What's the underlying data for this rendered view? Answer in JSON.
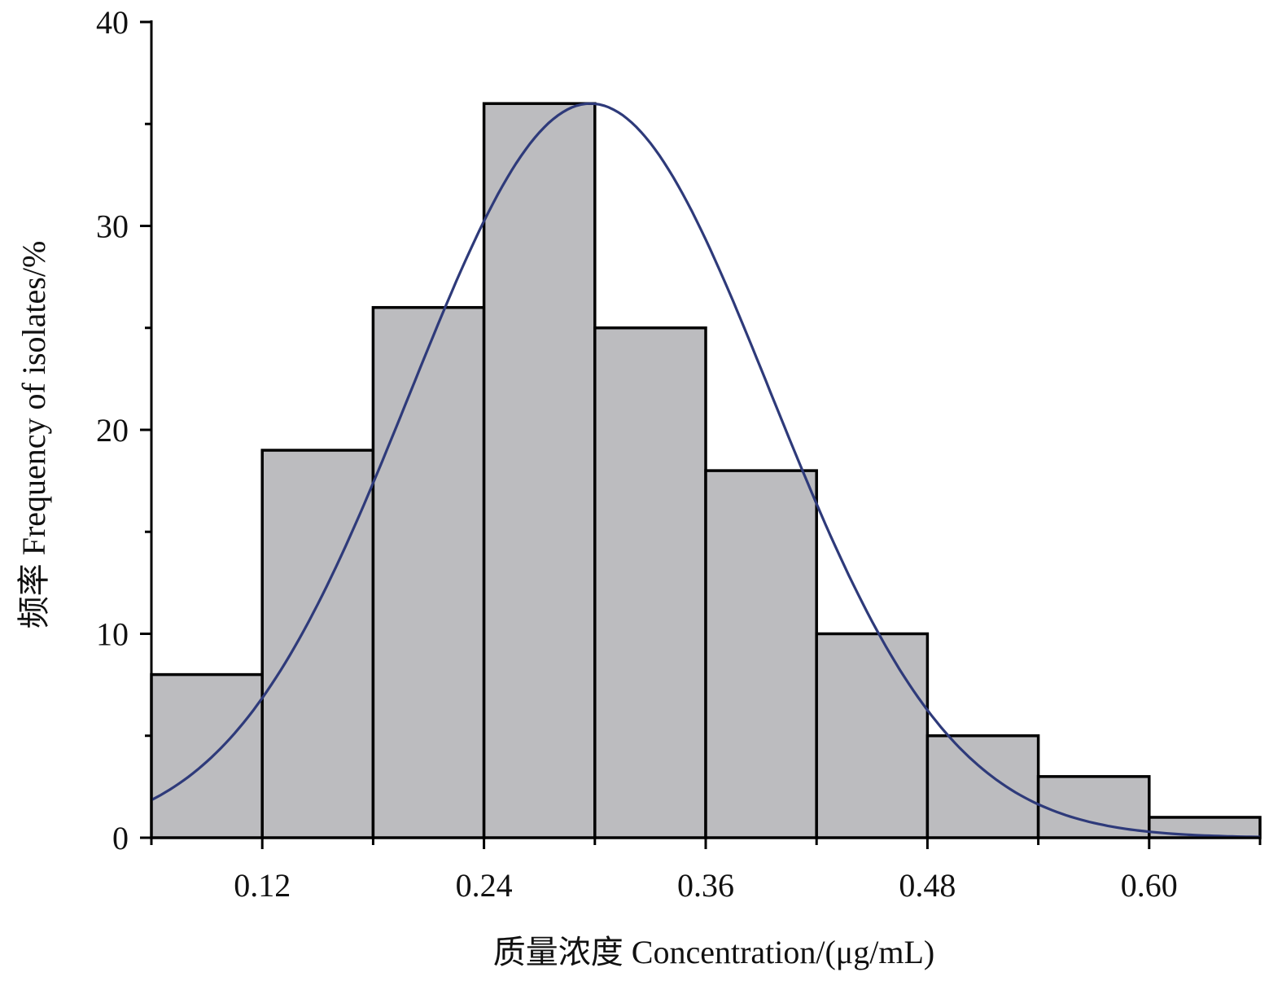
{
  "chart_data": {
    "type": "bar",
    "title": "",
    "xlabel": "质量浓度 Concentration/(μg/mL)",
    "ylabel": "频率 Frequency of isolates/%",
    "bins": [
      {
        "x0": 0.06,
        "x1": 0.12,
        "value": 8
      },
      {
        "x0": 0.12,
        "x1": 0.18,
        "value": 19
      },
      {
        "x0": 0.18,
        "x1": 0.24,
        "value": 26
      },
      {
        "x0": 0.24,
        "x1": 0.3,
        "value": 36
      },
      {
        "x0": 0.3,
        "x1": 0.36,
        "value": 25
      },
      {
        "x0": 0.36,
        "x1": 0.42,
        "value": 18
      },
      {
        "x0": 0.42,
        "x1": 0.48,
        "value": 10
      },
      {
        "x0": 0.48,
        "x1": 0.54,
        "value": 5
      },
      {
        "x0": 0.54,
        "x1": 0.6,
        "value": 3
      },
      {
        "x0": 0.6,
        "x1": 0.66,
        "value": 1
      }
    ],
    "xlim": [
      0.06,
      0.66
    ],
    "ylim": [
      0,
      40
    ],
    "x_ticks": [
      0.12,
      0.24,
      0.36,
      0.48,
      0.6
    ],
    "x_tick_labels": [
      "0.12",
      "0.24",
      "0.36",
      "0.48",
      "0.60"
    ],
    "y_ticks": [
      0,
      10,
      20,
      30,
      40
    ],
    "y_tick_labels": [
      "0",
      "10",
      "20",
      "30",
      "40"
    ],
    "fit_curve": {
      "type": "normal",
      "peak": 36,
      "mean": 0.2976,
      "sd": 0.0975
    },
    "grid": false,
    "legend": "none",
    "colors": {
      "bar_fill": "#bcbcbf",
      "bar_edge": "#000000",
      "curve": "#2e3a7a"
    }
  }
}
